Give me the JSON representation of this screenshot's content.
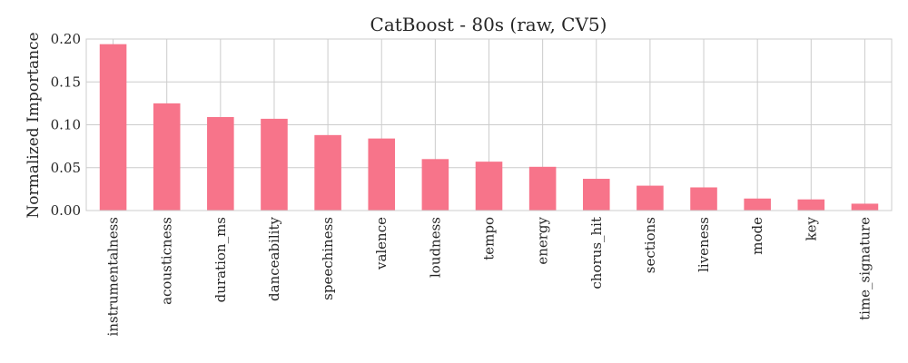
{
  "chart_data": {
    "type": "bar",
    "title": "CatBoost - 80s (raw, CV5)",
    "xlabel": "",
    "ylabel": "Normalized Importance",
    "categories": [
      "instrumentalness",
      "acousticness",
      "duration_ms",
      "danceability",
      "speechiness",
      "valence",
      "loudness",
      "tempo",
      "energy",
      "chorus_hit",
      "sections",
      "liveness",
      "mode",
      "key",
      "time_signature"
    ],
    "values": [
      0.194,
      0.125,
      0.109,
      0.107,
      0.088,
      0.084,
      0.06,
      0.057,
      0.051,
      0.037,
      0.029,
      0.027,
      0.014,
      0.013,
      0.008
    ],
    "ylim": [
      0,
      0.2
    ],
    "yticks": [
      "0.00",
      "0.05",
      "0.10",
      "0.15",
      "0.20"
    ],
    "grid": true,
    "bar_color": "#f7748a"
  }
}
